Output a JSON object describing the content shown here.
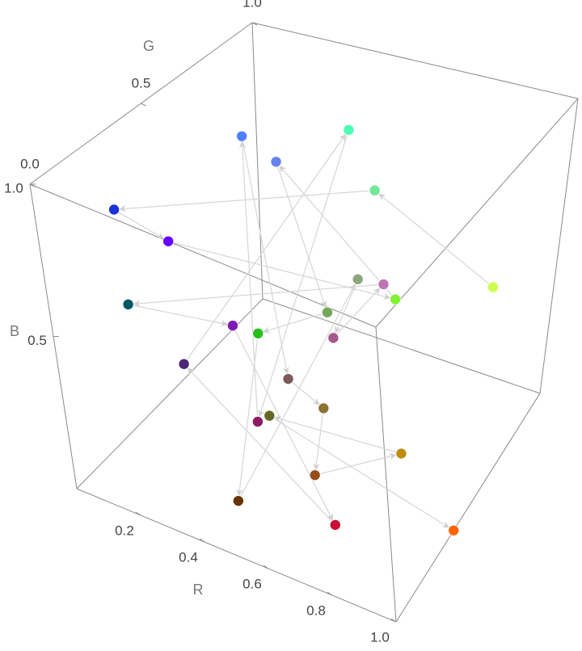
{
  "chart_data": {
    "type": "scatter3d",
    "xlabel": "R",
    "ylabel": "G",
    "zlabel": "B",
    "xlim": [
      0,
      1
    ],
    "ylim": [
      0,
      1
    ],
    "zlim": [
      0,
      1
    ],
    "xticks": [
      0.2,
      0.4,
      0.6,
      0.8,
      {
        "value": 1,
        "label": "1.0"
      }
    ],
    "yticks": [
      {
        "value": 0,
        "label": "0.0"
      },
      0.5,
      {
        "value": 1,
        "label": "1.0"
      }
    ],
    "zticks": [
      0.5,
      {
        "value": 1,
        "label": "1.0"
      }
    ],
    "connect": "arrows",
    "x": [
      0.8,
      0.45,
      0.1,
      0.4,
      0.5,
      0.4,
      0.45,
      0.15,
      0.4,
      0.55,
      0.65,
      0.75,
      0,
      0.5,
      0.8,
      0.3,
      0.3,
      0.55,
      0.3,
      0.5,
      0.55,
      0.6,
      0.75,
      0.4,
      1
    ],
    "y": [
      1,
      0.9,
      0.2,
      0,
      0.95,
      0.5,
      0.65,
      0.75,
      0.2,
      0.65,
      0.35,
      0.45,
      0.35,
      0.1,
      0.05,
      0.15,
      1,
      0.1,
      0.5,
      0.35,
      0.45,
      0.3,
      0.55,
      0.4,
      0.4
    ],
    "z": [
      0.3,
      0.6,
      0.85,
      1,
      0.2,
      0.95,
      0.35,
      0.1,
      0,
      0.5,
      0.55,
      0.7,
      0.4,
      0.7,
      0.2,
      0.45,
      0.7,
      0.4,
      1,
      0.35,
      0.2,
      0.1,
      0.05,
      0.15,
      0
    ]
  }
}
